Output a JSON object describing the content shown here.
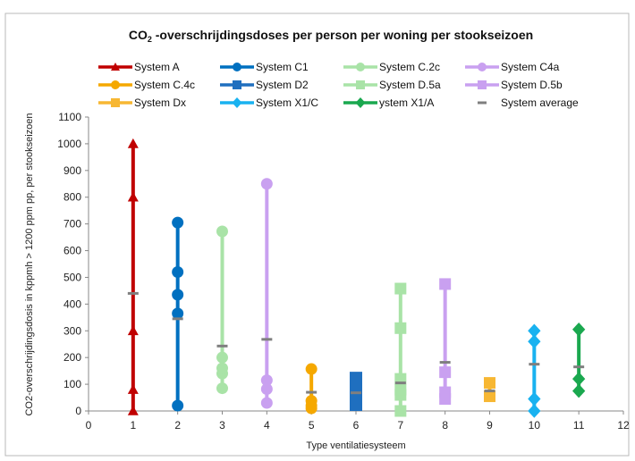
{
  "banner_text": "",
  "chart_data": {
    "type": "scatter",
    "title_main": "CO",
    "title_sub": "2",
    "title_rest": " -overschrijdingsdoses per person per woning per stookseizoen",
    "xlabel": "Type ventilatiesysteem",
    "ylabel": "CO2-overschrijdingsdosis in kppmh > 1200 ppm pp, per stookseizoen",
    "xlim": [
      0,
      12
    ],
    "ylim": [
      0,
      1100
    ],
    "x_ticks": [
      0,
      1,
      2,
      3,
      4,
      5,
      6,
      7,
      8,
      9,
      10,
      11,
      12
    ],
    "y_ticks": [
      0,
      100,
      200,
      300,
      400,
      500,
      600,
      700,
      800,
      900,
      1000,
      1100
    ],
    "grid": false,
    "legend_position": "top",
    "series": [
      {
        "name": "System A",
        "x": 1,
        "values": [
          0,
          80,
          300,
          800,
          1000
        ],
        "color": "#c00000",
        "marker": "triangle"
      },
      {
        "name": "System C1",
        "x": 2,
        "values": [
          20,
          365,
          435,
          520,
          705
        ],
        "color": "#0070c0",
        "marker": "circle"
      },
      {
        "name": "System C.2c",
        "x": 3,
        "values": [
          85,
          140,
          160,
          200,
          672
        ],
        "color": "#a9e3a7",
        "marker": "circle"
      },
      {
        "name": "System C4a",
        "x": 4,
        "values": [
          30,
          82,
          115,
          850
        ],
        "color": "#c9a0f0",
        "marker": "circle"
      },
      {
        "name": "System C.4c",
        "x": 5,
        "values": [
          10,
          20,
          38,
          157
        ],
        "color": "#f5a800",
        "marker": "circle"
      },
      {
        "name": "System D2",
        "x": 6,
        "values": [
          0,
          140
        ],
        "color": "#1f6fbf",
        "marker": "square"
      },
      {
        "name": "System D.5a",
        "x": 7,
        "values": [
          0,
          60,
          80,
          120,
          310,
          458
        ],
        "color": "#a9e3a7",
        "marker": "square"
      },
      {
        "name": "System D.5b",
        "x": 8,
        "values": [
          45,
          70,
          145,
          475
        ],
        "color": "#c9a0f0",
        "marker": "square"
      },
      {
        "name": "System Dx",
        "x": 9,
        "values": [
          55,
          105
        ],
        "color": "#f7b733",
        "marker": "square"
      },
      {
        "name": "System X1/C",
        "x": 10,
        "values": [
          0,
          45,
          260,
          300
        ],
        "color": "#19b2f0",
        "marker": "diamond"
      },
      {
        "name": "ystem X1/A",
        "x": 11,
        "values": [
          75,
          120,
          305
        ],
        "color": "#1aa84f",
        "marker": "diamond"
      }
    ],
    "system_average": {
      "name": "System average",
      "color": "#7f7f7f",
      "points": [
        {
          "x": 1,
          "y": 440
        },
        {
          "x": 2,
          "y": 345
        },
        {
          "x": 3,
          "y": 243
        },
        {
          "x": 4,
          "y": 268
        },
        {
          "x": 5,
          "y": 70
        },
        {
          "x": 6,
          "y": 68
        },
        {
          "x": 7,
          "y": 105
        },
        {
          "x": 8,
          "y": 182
        },
        {
          "x": 9,
          "y": 75
        },
        {
          "x": 10,
          "y": 175
        },
        {
          "x": 11,
          "y": 165
        }
      ]
    }
  }
}
